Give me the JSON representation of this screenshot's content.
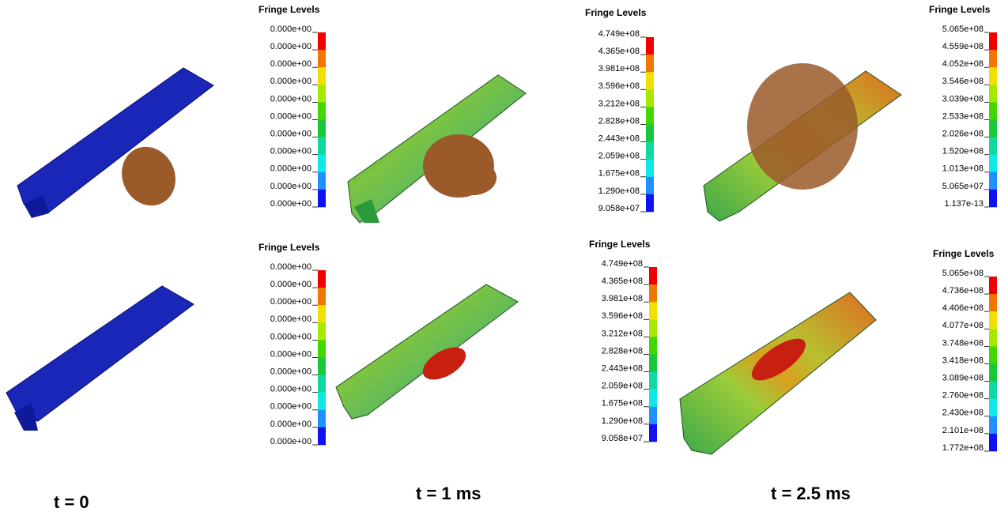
{
  "legends": [
    {
      "title": "Fringe Levels",
      "labels": [
        "0.000e+00",
        "0.000e+00",
        "0.000e+00",
        "0.000e+00",
        "0.000e+00",
        "0.000e+00",
        "0.000e+00",
        "0.000e+00",
        "0.000e+00",
        "0.000e+00",
        "0.000e+00"
      ]
    },
    {
      "title": "Fringe Levels",
      "labels": [
        "4.749e+08",
        "4.365e+08",
        "3.981e+08",
        "3.596e+08",
        "3.212e+08",
        "2.828e+08",
        "2.443e+08",
        "2.059e+08",
        "1.675e+08",
        "1.290e+08",
        "9.058e+07"
      ]
    },
    {
      "title": "Fringe Levels",
      "labels": [
        "5.065e+08",
        "4.559e+08",
        "4.052e+08",
        "3.546e+08",
        "3.039e+08",
        "2.533e+08",
        "2.026e+08",
        "1.520e+08",
        "1.013e+08",
        "5.065e+07",
        "1.137e-13"
      ]
    },
    {
      "title": "Fringe Levels",
      "labels": [
        "0.000e+00",
        "0.000e+00",
        "0.000e+00",
        "0.000e+00",
        "0.000e+00",
        "0.000e+00",
        "0.000e+00",
        "0.000e+00",
        "0.000e+00",
        "0.000e+00",
        "0.000e+00"
      ]
    },
    {
      "title": "Fringe Levels",
      "labels": [
        "4.749e+08",
        "4.365e+08",
        "3.981e+08",
        "3.596e+08",
        "3.212e+08",
        "2.828e+08",
        "2.443e+08",
        "2.059e+08",
        "1.675e+08",
        "1.290e+08",
        "9.058e+07"
      ]
    },
    {
      "title": "Fringe Levels",
      "labels": [
        "5.065e+08",
        "4.736e+08",
        "4.406e+08",
        "4.077e+08",
        "3.748e+08",
        "3.418e+08",
        "3.089e+08",
        "2.760e+08",
        "2.430e+08",
        "2.101e+08",
        "1.772e+08"
      ]
    }
  ],
  "time_labels": [
    "t = 0",
    "t = 1 ms",
    "t = 2.5 ms"
  ]
}
